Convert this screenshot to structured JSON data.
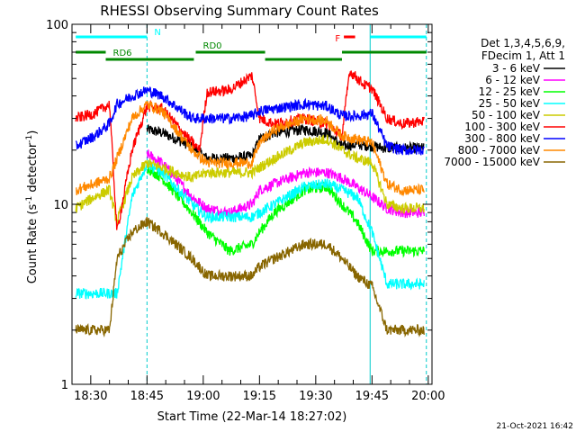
{
  "chart_data": {
    "type": "line",
    "title": "RHESSI Observing Summary Count Rates",
    "xlabel": "Start Time (22-Mar-14 18:27:02)",
    "ylabel_main": "Count Rate (s",
    "ylabel_sup1": "-1",
    "ylabel_mid": " detector",
    "ylabel_sup2": "-1",
    "ylabel_end": ")",
    "x_unit": "minutes since 18:27:02",
    "xlim": [
      -2.0,
      94.0
    ],
    "ylim": [
      1,
      100
    ],
    "yscale": "log",
    "x_ticks": [
      {
        "t": 3.0,
        "label": "18:30"
      },
      {
        "t": 18.0,
        "label": "18:45"
      },
      {
        "t": 33.0,
        "label": "19:00"
      },
      {
        "t": 48.0,
        "label": "19:15"
      },
      {
        "t": 63.0,
        "label": "19:30"
      },
      {
        "t": 78.0,
        "label": "19:45"
      },
      {
        "t": 93.0,
        "label": "20:00"
      }
    ],
    "y_ticks": [
      {
        "v": 1,
        "label": "1"
      },
      {
        "v": 10,
        "label": "10"
      },
      {
        "v": 100,
        "label": "100"
      }
    ],
    "legend": {
      "placement": "right",
      "header": [
        "Det 1,3,4,5,6,9,",
        "FDecim 1, Att 1"
      ]
    },
    "series": [
      {
        "name": "3 - 6 keV",
        "color": "#000000",
        "x": [
          18,
          22,
          30,
          34,
          40,
          46,
          48,
          52,
          60,
          66,
          70,
          74,
          78,
          82,
          86,
          92
        ],
        "y": [
          26,
          25,
          21,
          18,
          18,
          18.5,
          23,
          25,
          26,
          25,
          21,
          21.5,
          21,
          20.5,
          20.5,
          20.5
        ]
      },
      {
        "name": "6 - 12 keV",
        "color": "#ff00ff",
        "x": [
          18,
          22,
          30,
          34,
          40,
          46,
          48,
          52,
          60,
          66,
          70,
          74,
          78,
          82,
          86,
          92
        ],
        "y": [
          19,
          17,
          11,
          9.5,
          9,
          10,
          12,
          13,
          15,
          15,
          14,
          12.5,
          11,
          9.5,
          9,
          9
        ]
      },
      {
        "name": "12 - 25 keV",
        "color": "#00ff00",
        "x": [
          18,
          22,
          30,
          34,
          40,
          46,
          48,
          52,
          60,
          66,
          70,
          74,
          78,
          82,
          86,
          92
        ],
        "y": [
          16,
          14,
          9,
          7,
          5.5,
          6,
          7,
          9,
          12,
          12.5,
          10,
          8,
          5.5,
          5.5,
          5.5,
          5.5
        ]
      },
      {
        "name": "25 - 50 keV",
        "color": "#00ffff",
        "x": [
          -1,
          4,
          10,
          14,
          18,
          22,
          30,
          34,
          40,
          46,
          48,
          52,
          60,
          66,
          70,
          74,
          78,
          82,
          86,
          92
        ],
        "y": [
          3.2,
          3.2,
          3.2,
          11,
          17,
          15,
          10,
          8.5,
          8.5,
          8.5,
          9,
          10,
          12.5,
          13,
          12,
          11,
          7,
          3.6,
          3.6,
          3.6
        ]
      },
      {
        "name": "50 - 100 keV",
        "color": "#cccc00",
        "x": [
          -1,
          4,
          8,
          10,
          14,
          18,
          22,
          30,
          34,
          40,
          46,
          48,
          52,
          60,
          66,
          70,
          74,
          78,
          82,
          86,
          92
        ],
        "y": [
          9.5,
          11,
          12,
          8,
          14,
          17,
          16,
          14,
          15,
          15,
          15,
          16,
          18,
          22,
          23,
          20,
          18,
          17,
          10,
          9.5,
          9.5
        ]
      },
      {
        "name": "100 - 300 keV",
        "color": "#ff0000",
        "x": [
          -1,
          4,
          8,
          10,
          14,
          18,
          22,
          30,
          32,
          34,
          40,
          46,
          48,
          52,
          60,
          66,
          70,
          72,
          76,
          78,
          82,
          86,
          92
        ],
        "y": [
          30,
          32,
          36,
          7,
          20,
          35,
          34,
          22,
          20,
          42,
          43,
          52,
          30,
          28,
          30,
          28,
          24,
          55,
          46,
          44,
          30,
          28,
          29
        ]
      },
      {
        "name": "300 - 800 keV",
        "color": "#0000ff",
        "x": [
          -1,
          4,
          8,
          10,
          14,
          18,
          22,
          30,
          34,
          40,
          46,
          48,
          52,
          60,
          66,
          70,
          74,
          78,
          82,
          86,
          92
        ],
        "y": [
          21,
          24,
          28,
          36,
          40,
          43,
          40,
          30,
          30,
          30,
          31,
          33,
          34,
          36,
          35,
          31,
          31,
          32,
          21,
          20,
          20
        ]
      },
      {
        "name": "800 - 7000 keV",
        "color": "#ff8800",
        "x": [
          -1,
          4,
          8,
          10,
          14,
          18,
          22,
          30,
          34,
          40,
          46,
          48,
          52,
          60,
          66,
          70,
          74,
          78,
          82,
          86,
          92
        ],
        "y": [
          12,
          13,
          14,
          18,
          30,
          36,
          33,
          20,
          17,
          17,
          17,
          22,
          26,
          30,
          29,
          24,
          23,
          22,
          13,
          12,
          12
        ]
      },
      {
        "name": "7000 - 15000 keV",
        "color": "#886600",
        "x": [
          -1,
          4,
          8,
          10,
          14,
          18,
          22,
          30,
          34,
          40,
          46,
          48,
          52,
          60,
          66,
          70,
          74,
          78,
          82,
          86,
          92
        ],
        "y": [
          2,
          2,
          2,
          5,
          7,
          8,
          7,
          5,
          4,
          4,
          4,
          4.5,
          5,
          6,
          6,
          5,
          4,
          3.5,
          2,
          2,
          2
        ]
      }
    ],
    "vlines": [
      {
        "t": 18.0,
        "color": "#00cccc",
        "style": "dashed"
      },
      {
        "t": 77.5,
        "color": "#00cccc",
        "style": "solid"
      },
      {
        "t": 92.5,
        "color": "#00cccc",
        "style": "dashed"
      }
    ],
    "bars": [
      {
        "t0": -1.0,
        "t1": 18.0,
        "row": "top",
        "color": "#00ffff",
        "label": "N"
      },
      {
        "t0": 77.5,
        "t1": 92.5,
        "row": "top",
        "color": "#00ffff",
        "label": ""
      },
      {
        "t0": 70.5,
        "t1": 73.5,
        "row": "top",
        "color": "#ff0000",
        "label": "F"
      },
      {
        "t0": -1.0,
        "t1": 7.0,
        "row": "mid",
        "color": "#008800",
        "label": ""
      },
      {
        "t0": 7.0,
        "t1": 30.5,
        "row": "low",
        "color": "#008800",
        "label": "RD6"
      },
      {
        "t0": 31.0,
        "t1": 49.5,
        "row": "mid",
        "color": "#008800",
        "label": "RD0"
      },
      {
        "t0": 49.5,
        "t1": 70.0,
        "row": "low",
        "color": "#008800",
        "label": ""
      },
      {
        "t0": 70.0,
        "t1": 92.5,
        "row": "mid",
        "color": "#008800",
        "label": ""
      }
    ]
  },
  "footer": {
    "timestamp": "21-Oct-2021 16:42"
  }
}
